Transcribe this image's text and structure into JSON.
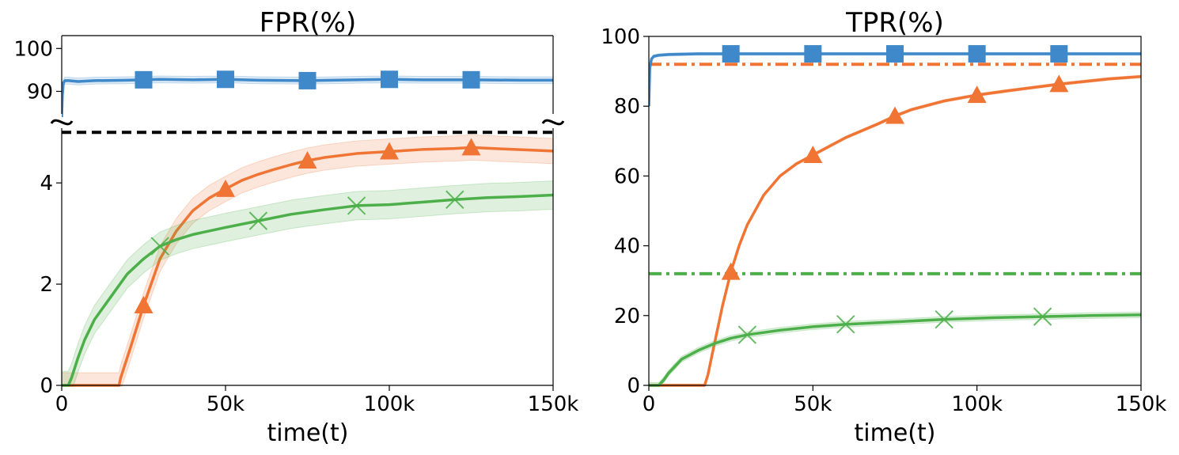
{
  "chart_data": [
    {
      "type": "line",
      "title": "FPR(%)",
      "xlabel": "time(t)",
      "ylabel": "",
      "xlim": [
        0,
        150000
      ],
      "x_ticks": [
        0,
        50000,
        100000,
        150000
      ],
      "x_tick_labels": [
        "0",
        "50k",
        "100k",
        "150k"
      ],
      "broken_y_axis": true,
      "upper_panel": {
        "ylim": [
          84,
          103
        ],
        "y_ticks": [
          90,
          100
        ],
        "y_tick_labels": [
          "90",
          "100"
        ]
      },
      "lower_panel": {
        "ylim": [
          0,
          5.3
        ],
        "y_ticks": [
          0,
          2,
          4
        ],
        "y_tick_labels": [
          "0",
          "2",
          "4"
        ]
      },
      "reference_lines": [
        {
          "y": 5,
          "color": "#000000",
          "style": "dashed"
        }
      ],
      "series": [
        {
          "color": "#3f88c9",
          "marker": "square",
          "marker_x": [
            25000,
            50000,
            75000,
            100000,
            125000
          ],
          "x": [
            0,
            200,
            500,
            1000,
            2000,
            5000,
            10000,
            20000,
            30000,
            40000,
            50000,
            60000,
            75000,
            90000,
            100000,
            110000,
            125000,
            140000,
            150000
          ],
          "y": [
            84,
            89,
            92,
            92.5,
            92.5,
            92.3,
            92.5,
            92.6,
            92.8,
            92.7,
            92.8,
            92.6,
            92.5,
            92.7,
            92.8,
            92.7,
            92.7,
            92.6,
            92.6
          ],
          "band": 0.8
        },
        {
          "color": "#f07535",
          "marker": "triangle",
          "marker_x": [
            25000,
            50000,
            75000,
            100000,
            125000
          ],
          "x": [
            0,
            17500,
            18000,
            21000,
            25000,
            30000,
            35000,
            40000,
            45000,
            50000,
            55000,
            60000,
            65000,
            70000,
            75000,
            80000,
            90000,
            100000,
            110000,
            120000,
            125000,
            135000,
            150000
          ],
          "y": [
            0,
            0,
            0.15,
            0.75,
            1.58,
            2.5,
            3.05,
            3.45,
            3.7,
            3.88,
            4.05,
            4.17,
            4.27,
            4.36,
            4.44,
            4.5,
            4.58,
            4.62,
            4.66,
            4.68,
            4.7,
            4.67,
            4.63
          ],
          "band": 0.25
        },
        {
          "color": "#4caf4a",
          "marker": "x",
          "marker_x": [
            30000,
            60000,
            90000,
            120000
          ],
          "x": [
            0,
            2000,
            3000,
            5000,
            7000,
            10000,
            15000,
            20000,
            25000,
            30000,
            35000,
            40000,
            50000,
            60000,
            70000,
            80000,
            90000,
            100000,
            110000,
            120000,
            130000,
            140000,
            150000
          ],
          "y": [
            0,
            0,
            0.15,
            0.55,
            0.9,
            1.3,
            1.75,
            2.2,
            2.5,
            2.75,
            2.88,
            2.98,
            3.12,
            3.25,
            3.38,
            3.47,
            3.55,
            3.57,
            3.62,
            3.67,
            3.71,
            3.73,
            3.76
          ],
          "band": 0.28
        }
      ]
    },
    {
      "type": "line",
      "title": "TPR(%)",
      "xlabel": "time(t)",
      "ylabel": "",
      "xlim": [
        0,
        150000
      ],
      "ylim": [
        0,
        100
      ],
      "x_ticks": [
        0,
        50000,
        100000,
        150000
      ],
      "x_tick_labels": [
        "0",
        "50k",
        "100k",
        "150k"
      ],
      "y_ticks": [
        0,
        20,
        40,
        60,
        80,
        100
      ],
      "y_tick_labels": [
        "0",
        "20",
        "40",
        "60",
        "80",
        "100"
      ],
      "reference_lines": [
        {
          "y": 92,
          "color": "#f07535",
          "style": "dashdot"
        },
        {
          "y": 32,
          "color": "#4caf4a",
          "style": "dashdot"
        }
      ],
      "series": [
        {
          "color": "#3f88c9",
          "marker": "square",
          "marker_x": [
            25000,
            50000,
            75000,
            100000,
            125000
          ],
          "x": [
            0,
            300,
            800,
            1500,
            3000,
            6000,
            15000,
            30000,
            50000,
            100000,
            150000
          ],
          "y": [
            80,
            91,
            93.5,
            94.3,
            94.6,
            94.8,
            95,
            95,
            95,
            95,
            95
          ],
          "band": 0.4
        },
        {
          "color": "#f07535",
          "marker": "triangle",
          "marker_x": [
            25000,
            50000,
            75000,
            100000,
            125000
          ],
          "x": [
            0,
            17000,
            18000,
            20000,
            22500,
            25000,
            27500,
            30000,
            35000,
            40000,
            45000,
            50000,
            60000,
            70000,
            75000,
            80000,
            90000,
            100000,
            110000,
            125000,
            140000,
            150000
          ],
          "y": [
            0,
            0,
            3,
            12,
            23,
            32.5,
            40,
            46,
            54.5,
            60,
            63.5,
            66,
            71,
            75,
            77.2,
            79,
            81.5,
            83.2,
            84.5,
            86.3,
            87.8,
            88.5
          ],
          "band": 0.4
        },
        {
          "color": "#4caf4a",
          "marker": "x",
          "marker_x": [
            30000,
            60000,
            90000,
            120000
          ],
          "x": [
            0,
            3000,
            4500,
            6000,
            8000,
            10000,
            15000,
            20000,
            25000,
            30000,
            40000,
            50000,
            60000,
            75000,
            90000,
            105000,
            120000,
            135000,
            150000
          ],
          "y": [
            0,
            0,
            1.5,
            3.5,
            5.5,
            7.5,
            10,
            12,
            13.5,
            14.5,
            15.8,
            16.8,
            17.5,
            18.2,
            18.9,
            19.4,
            19.7,
            20,
            20.2
          ],
          "band": 0.8
        }
      ]
    }
  ]
}
